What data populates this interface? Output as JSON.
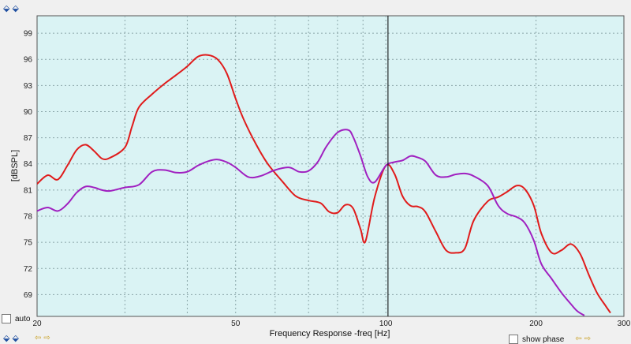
{
  "controls": {
    "auto_label": "auto",
    "show_phase_label": "show phase",
    "zoom_icon_top": "zoom-arrows-icon",
    "zoom_icon_bottom": "zoom-arrows-icon"
  },
  "colors": {
    "plot_bg": "#daf3f4",
    "grid": "#8aa5a8",
    "series_red": "#e01b1b",
    "series_purple": "#a020c0",
    "cursor": "#000000"
  },
  "chart_data": {
    "type": "line",
    "title": "",
    "xlabel": "Frequency Response -freq [Hz]",
    "ylabel": "[dBSPL]",
    "x_scale": "log",
    "xlim": [
      20,
      300
    ],
    "ylim": [
      66.5,
      101
    ],
    "x_ticks": [
      {
        "value": 20,
        "label": "20"
      },
      {
        "value": 50,
        "label": "50"
      },
      {
        "value": 100,
        "label": "100"
      },
      {
        "value": 200,
        "label": "200"
      },
      {
        "value": 300,
        "label": "300"
      }
    ],
    "y_ticks": [
      69,
      72,
      75,
      78,
      81,
      84,
      87,
      90,
      93,
      96,
      99
    ],
    "minor_x_grid": [
      30,
      40,
      60,
      70,
      80,
      90
    ],
    "grid": true,
    "cursor_x": 101,
    "series": [
      {
        "color": "#e01b1b",
        "x": [
          20,
          21,
          22,
          23,
          24,
          25,
          26,
          27,
          28,
          30,
          31,
          32,
          34,
          36,
          38,
          40,
          42,
          44,
          46,
          48,
          50,
          52,
          55,
          58,
          62,
          66,
          70,
          74,
          77,
          80,
          83,
          86,
          89,
          91,
          95,
          100,
          104,
          108,
          112,
          116,
          120,
          126,
          132,
          138,
          144,
          150,
          160,
          168,
          175,
          183,
          190,
          198,
          205,
          215,
          225,
          235,
          245,
          255,
          265,
          275,
          282
        ],
        "y": [
          81.7,
          82.7,
          82.2,
          83.8,
          85.6,
          86.2,
          85.5,
          84.6,
          84.7,
          85.9,
          88.3,
          90.5,
          92.0,
          93.2,
          94.2,
          95.2,
          96.3,
          96.5,
          96.0,
          94.4,
          91.5,
          89.0,
          86.2,
          84.0,
          82.0,
          80.3,
          79.8,
          79.5,
          78.5,
          78.4,
          79.3,
          78.9,
          76.5,
          75.1,
          80.2,
          83.8,
          82.9,
          80.3,
          79.2,
          79.1,
          78.5,
          76.2,
          74.1,
          73.8,
          74.3,
          77.5,
          79.7,
          80.2,
          80.8,
          81.5,
          81.1,
          79.2,
          76.0,
          73.8,
          74.1,
          74.8,
          73.7,
          71.3,
          69.2,
          67.8,
          66.9
        ]
      },
      {
        "color": "#a020c0",
        "x": [
          20,
          21,
          22,
          23,
          24,
          25,
          26,
          27,
          28,
          30,
          32,
          34,
          36,
          38,
          40,
          42,
          44,
          46,
          48,
          50,
          53,
          56,
          60,
          64,
          67,
          70,
          73,
          76,
          80,
          84,
          86,
          89,
          92,
          95,
          100,
          104,
          108,
          112,
          115,
          120,
          126,
          132,
          138,
          144,
          150,
          160,
          168,
          175,
          183,
          190,
          198,
          205,
          215,
          225,
          235,
          242,
          250
        ],
        "y": [
          78.6,
          79.0,
          78.6,
          79.4,
          80.7,
          81.4,
          81.3,
          81.0,
          80.9,
          81.3,
          81.6,
          83.1,
          83.3,
          83.0,
          83.1,
          83.8,
          84.3,
          84.5,
          84.2,
          83.6,
          82.5,
          82.6,
          83.3,
          83.6,
          83.1,
          83.2,
          84.2,
          86.0,
          87.6,
          87.9,
          87.1,
          84.9,
          82.5,
          81.9,
          83.8,
          84.2,
          84.4,
          84.9,
          84.8,
          84.3,
          82.7,
          82.5,
          82.8,
          82.9,
          82.6,
          81.5,
          79.2,
          78.3,
          77.9,
          77.2,
          75.2,
          72.5,
          70.8,
          69.2,
          67.9,
          67.1,
          66.6
        ]
      }
    ]
  }
}
